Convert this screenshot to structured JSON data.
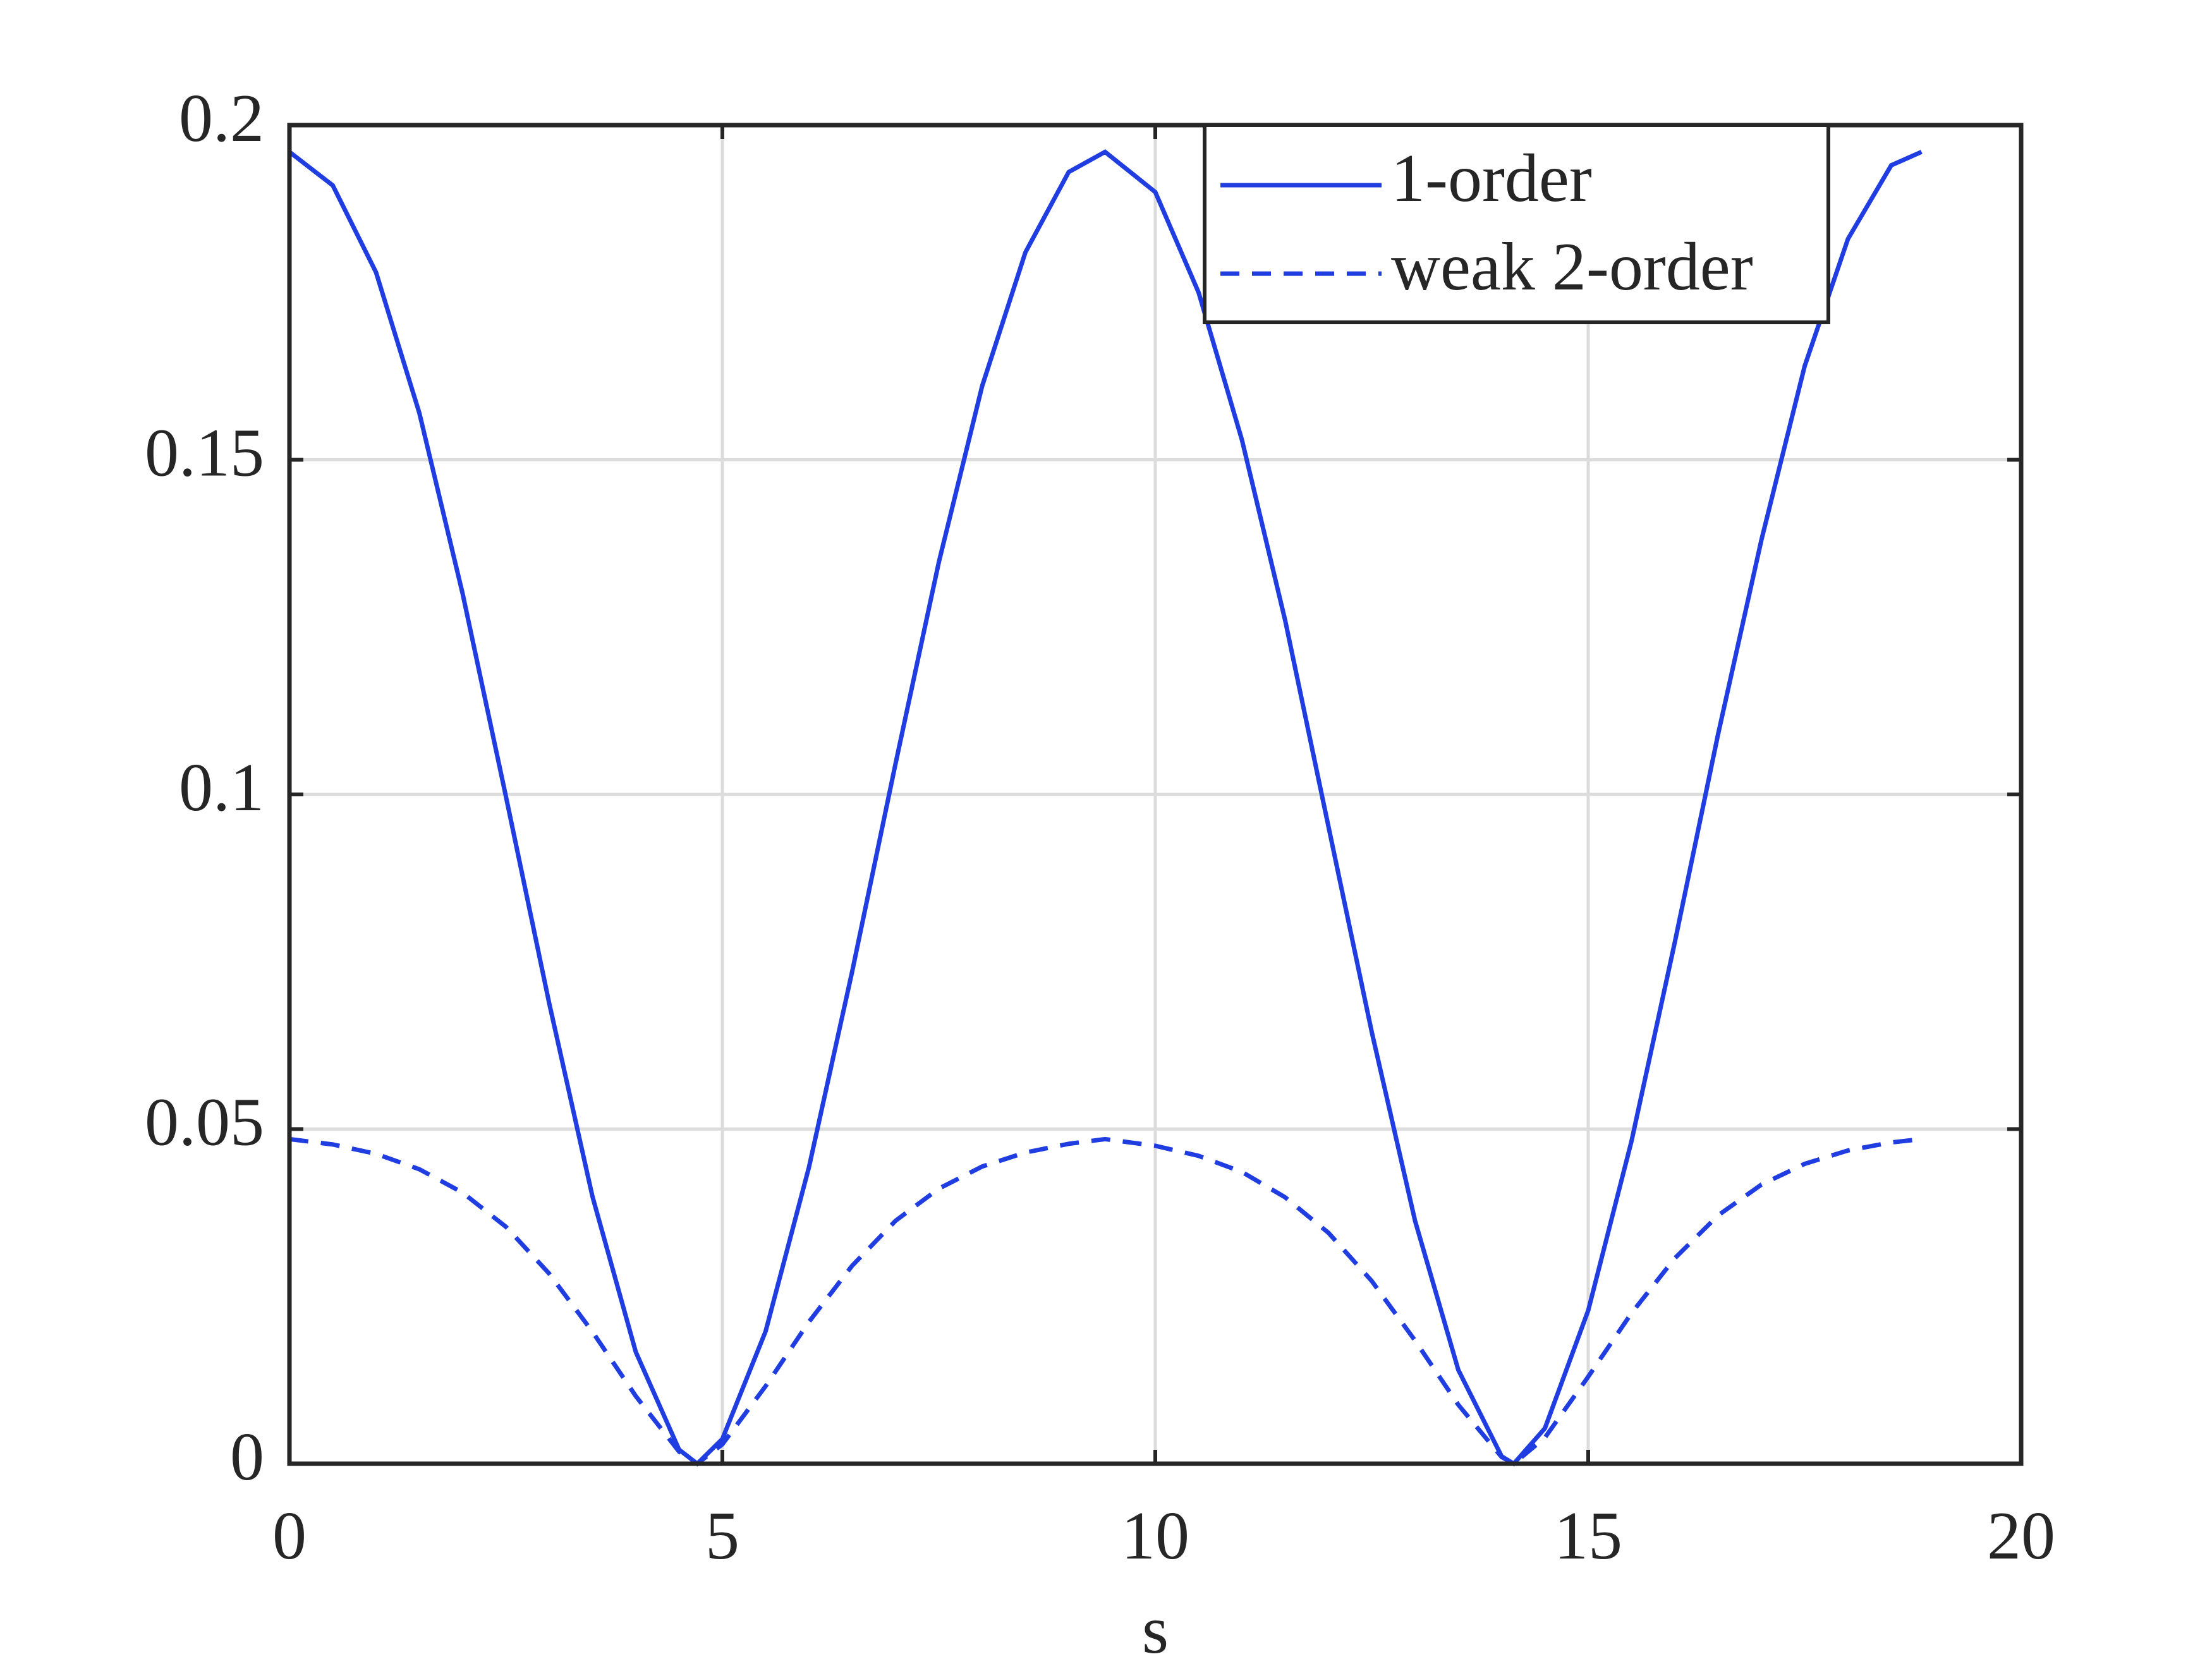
{
  "chart_data": {
    "type": "line",
    "xlabel": "s",
    "x": [
      0,
      0.5,
      1,
      1.5,
      2,
      2.5,
      3,
      3.5,
      4,
      4.5,
      4.71,
      5,
      5.5,
      6,
      6.5,
      7,
      7.5,
      8,
      8.5,
      9,
      9.42,
      10,
      10.5,
      11,
      11.5,
      12,
      12.5,
      13,
      13.5,
      14,
      14.14,
      14.5,
      15,
      15.5,
      16,
      16.5,
      17,
      17.5,
      18,
      18.5,
      18.85
    ],
    "series": [
      {
        "name": "1-order",
        "color": "#1f3de0",
        "dash": false,
        "values": [
          0.196,
          0.191,
          0.178,
          0.157,
          0.13,
          0.0997,
          0.0688,
          0.0399,
          0.0167,
          0.0021,
          0,
          0.0037,
          0.0198,
          0.0443,
          0.0736,
          0.1046,
          0.1347,
          0.161,
          0.181,
          0.193,
          0.196,
          0.19,
          0.175,
          0.153,
          0.126,
          0.0952,
          0.0645,
          0.0363,
          0.014,
          0.0011,
          0,
          0.0053,
          0.0229,
          0.0482,
          0.0779,
          0.109,
          0.138,
          0.164,
          0.183,
          0.194,
          0.196
        ]
      },
      {
        "name": "weak 2-order",
        "color": "#1f3de0",
        "dash": true,
        "values": [
          0.0485,
          0.0477,
          0.0463,
          0.044,
          0.0405,
          0.0354,
          0.0284,
          0.0197,
          0.0101,
          0.0018,
          0,
          0.0029,
          0.0116,
          0.0212,
          0.0296,
          0.0363,
          0.0411,
          0.0444,
          0.0465,
          0.0478,
          0.0485,
          0.0475,
          0.046,
          0.0436,
          0.0398,
          0.0345,
          0.0273,
          0.0184,
          0.0088,
          0.001,
          0,
          0.0039,
          0.013,
          0.0225,
          0.0307,
          0.0371,
          0.0417,
          0.0448,
          0.0468,
          0.048,
          0.0485
        ]
      }
    ],
    "xlim": [
      0,
      20
    ],
    "xticks": [
      0,
      5,
      10,
      15,
      20
    ],
    "ylim": [
      0,
      0.2
    ],
    "yticks": [
      0,
      0.05,
      0.1,
      0.15,
      0.2
    ],
    "grid": true,
    "legend": "upper right"
  }
}
